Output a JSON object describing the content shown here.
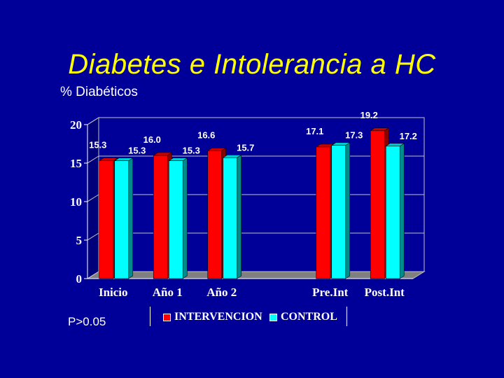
{
  "slide": {
    "title": "Diabetes e Intolerancia a HC",
    "subtitle": "% Diabéticos",
    "note": "P>0.05"
  },
  "colors": {
    "background": "#000099",
    "title": "#ffff00",
    "intervencion": "#ff0000",
    "control": "#00ffff"
  },
  "chart_data": {
    "type": "bar",
    "categories": [
      "Inicio",
      "Año 1",
      "Año 2",
      "",
      "Pre.Int",
      "Post.Int"
    ],
    "series": [
      {
        "name": "INTERVENCION",
        "values": [
          15.3,
          16.0,
          16.6,
          null,
          17.1,
          19.2
        ],
        "labels": [
          "15.3",
          "16.0",
          "16.6",
          "",
          "17.1",
          "19.2"
        ]
      },
      {
        "name": "CONTROL",
        "values": [
          15.3,
          15.3,
          15.7,
          null,
          17.3,
          17.2
        ],
        "labels": [
          "15.3",
          "15.3",
          "15.7",
          "",
          "17.3",
          "17.2"
        ]
      }
    ],
    "ylim": [
      0,
      20
    ],
    "yticks": [
      "0",
      "5",
      "10",
      "15",
      "20"
    ],
    "grid": true,
    "legend_position": "bottom",
    "three_d": true
  }
}
